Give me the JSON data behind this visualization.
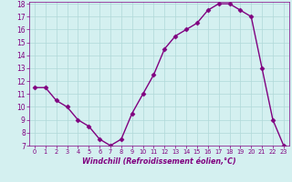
{
  "x": [
    0,
    1,
    2,
    3,
    4,
    5,
    6,
    7,
    8,
    9,
    10,
    11,
    12,
    13,
    14,
    15,
    16,
    17,
    18,
    19,
    20,
    21,
    22,
    23
  ],
  "y": [
    11.5,
    11.5,
    10.5,
    10.0,
    9.0,
    8.5,
    7.5,
    7.0,
    7.5,
    9.5,
    11.0,
    12.5,
    14.5,
    15.5,
    16.0,
    16.5,
    17.5,
    18.0,
    18.0,
    17.5,
    17.0,
    13.0,
    9.0,
    7.0
  ],
  "line_color": "#800080",
  "marker": "D",
  "marker_size": 2.5,
  "line_width": 1.0,
  "bg_color": "#d4f0f0",
  "grid_color": "#b0d8d8",
  "xlim": [
    -0.5,
    23.5
  ],
  "ylim": [
    7,
    18
  ],
  "yticks": [
    7,
    8,
    9,
    10,
    11,
    12,
    13,
    14,
    15,
    16,
    17,
    18
  ],
  "xtick_labels": [
    "0",
    "1",
    "2",
    "3",
    "4",
    "5",
    "6",
    "7",
    "8",
    "9",
    "10",
    "11",
    "12",
    "13",
    "14",
    "15",
    "16",
    "17",
    "18",
    "19",
    "20",
    "21",
    "22",
    "23"
  ],
  "xlabel": "Windchill (Refroidissement éolien,°C)",
  "xlabel_color": "#800080",
  "tick_color": "#800080",
  "ytick_fontsize": 5.5,
  "xtick_fontsize": 4.8,
  "xlabel_fontsize": 5.8
}
